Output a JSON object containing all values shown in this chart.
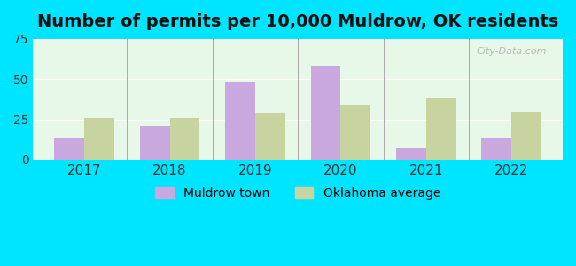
{
  "title": "Number of permits per 10,000 Muldrow, OK residents",
  "years": [
    2017,
    2018,
    2019,
    2020,
    2021,
    2022
  ],
  "muldrow": [
    13,
    21,
    48,
    58,
    7,
    13
  ],
  "ok_avg": [
    26,
    26,
    29,
    34,
    38,
    30
  ],
  "muldrow_color": "#c9a8e0",
  "ok_avg_color": "#c8d4a0",
  "bg_outer": "#00e5ff",
  "bg_inner_top": "#e8f5e9",
  "bg_inner_bottom": "#d0f0f0",
  "ylim": [
    0,
    75
  ],
  "yticks": [
    0,
    25,
    50,
    75
  ],
  "bar_width": 0.35,
  "legend_muldrow": "Muldrow town",
  "legend_ok": "Oklahoma average",
  "title_fontsize": 14,
  "watermark": "City-Data.com"
}
